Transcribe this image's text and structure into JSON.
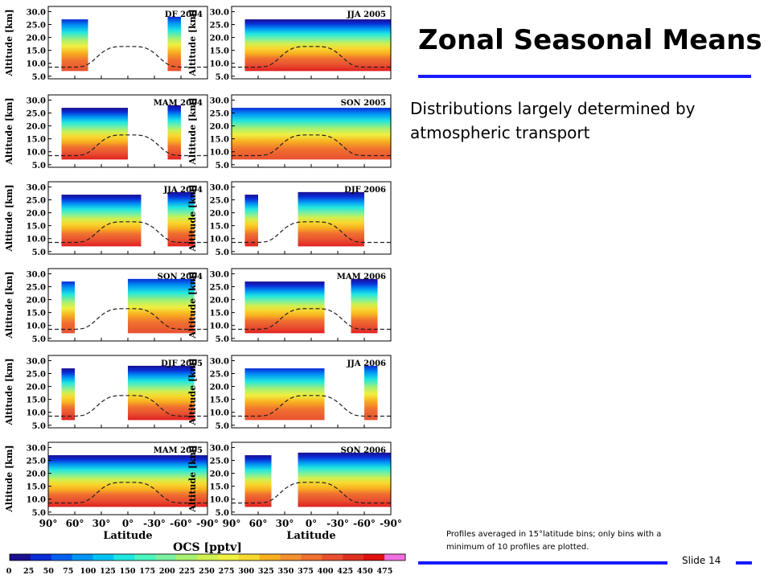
{
  "slide": {
    "title": "Zonal Seasonal Means",
    "bullet": "Distributions largely determined by atmospheric transport",
    "footnote": "Profiles averaged in 15°latitude bins; only bins with a minimum of 10 profiles are plotted.",
    "slide_number": "Slide 14"
  },
  "chart_data": {
    "type": "heatmap",
    "panel_titles": [
      "DF 2004",
      "JJA 2005",
      "MAM 2004",
      "SON 2005",
      "JJA 2004",
      "DJF 2006",
      "SON 2004",
      "MAM 2006",
      "DJF 2005",
      "JJA 2006",
      "MAM 2005",
      "SON 2006"
    ],
    "ylabel": "Altitude [km]",
    "xlabel": "Latitude",
    "y_ticks": [
      "30.0",
      "25.0",
      "20.0",
      "15.0",
      "10.0",
      "5.0"
    ],
    "x_ticks": [
      "90°",
      "60°",
      "30°",
      "0°",
      "-30°",
      "-60°",
      "-90°"
    ],
    "ylim": [
      5,
      30
    ],
    "xlim": [
      90,
      -90
    ],
    "colorbar_label": "OCS [pptv]",
    "colorbar_ticks": [
      "0",
      "25",
      "50",
      "75",
      "100",
      "125",
      "150",
      "175",
      "200",
      "225",
      "250",
      "275",
      "300",
      "325",
      "350",
      "375",
      "400",
      "425",
      "450",
      "475"
    ],
    "colorbar_colors": [
      "#1a0f8f",
      "#0a2bd6",
      "#0060f0",
      "#0095f5",
      "#00c4f5",
      "#20e6e0",
      "#4af5c0",
      "#7af0a0",
      "#a8f070",
      "#d0f050",
      "#f0f040",
      "#f8d830",
      "#f8b020",
      "#f59030",
      "#f07030",
      "#e85030",
      "#e03020",
      "#e01010",
      "#f070e0"
    ],
    "dashed_line": "tropopause",
    "panels": [
      {
        "name": "DF 2004",
        "covered_bins": [
          [
            75,
            45
          ],
          [
            -45,
            -60
          ]
        ]
      },
      {
        "name": "JJA 2005",
        "covered_bins": [
          [
            75,
            -90
          ]
        ]
      },
      {
        "name": "MAM 2004",
        "covered_bins": [
          [
            75,
            0
          ],
          [
            -45,
            -60
          ]
        ]
      },
      {
        "name": "SON 2005",
        "covered_bins": [
          [
            90,
            -90
          ]
        ]
      },
      {
        "name": "JJA 2004",
        "covered_bins": [
          [
            75,
            -15
          ],
          [
            -45,
            -75
          ]
        ]
      },
      {
        "name": "DJF 2006",
        "covered_bins": [
          [
            75,
            60
          ],
          [
            15,
            -60
          ]
        ]
      },
      {
        "name": "SON 2004",
        "covered_bins": [
          [
            75,
            60
          ],
          [
            0,
            -75
          ]
        ]
      },
      {
        "name": "MAM 2006",
        "covered_bins": [
          [
            75,
            -15
          ],
          [
            -45,
            -75
          ]
        ]
      },
      {
        "name": "DJF 2005",
        "covered_bins": [
          [
            75,
            60
          ],
          [
            0,
            -75
          ]
        ]
      },
      {
        "name": "JJA 2006",
        "covered_bins": [
          [
            75,
            -15
          ],
          [
            -60,
            -75
          ]
        ]
      },
      {
        "name": "MAM 2005",
        "covered_bins": [
          [
            90,
            -90
          ]
        ]
      },
      {
        "name": "SON 2006",
        "covered_bins": [
          [
            75,
            45
          ],
          [
            15,
            -90
          ]
        ]
      }
    ]
  }
}
